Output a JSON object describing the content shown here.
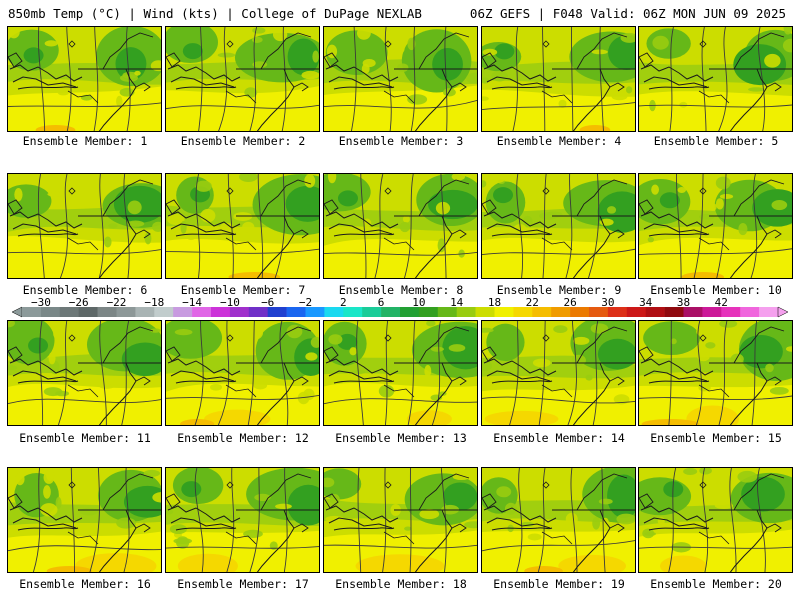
{
  "header": {
    "left": "850mb Temp (°C) | Wind (kts) | College of DuPage NEXLAB",
    "right": "06Z GEFS | F048 Valid: 06Z MON JUN 09 2025"
  },
  "members": [
    "Ensemble Member: 1",
    "Ensemble Member: 2",
    "Ensemble Member: 3",
    "Ensemble Member: 4",
    "Ensemble Member: 5",
    "Ensemble Member: 6",
    "Ensemble Member: 7",
    "Ensemble Member: 8",
    "Ensemble Member: 9",
    "Ensemble Member: 10",
    "Ensemble Member: 11",
    "Ensemble Member: 12",
    "Ensemble Member: 13",
    "Ensemble Member: 14",
    "Ensemble Member: 15",
    "Ensemble Member: 16",
    "Ensemble Member: 17",
    "Ensemble Member: 18",
    "Ensemble Member: 19",
    "Ensemble Member: 20"
  ],
  "colorbar": {
    "labels": [
      "−30",
      "−26",
      "−22",
      "−18",
      "−14",
      "−10",
      "−6",
      "−2",
      "2",
      "6",
      "10",
      "14",
      "18",
      "22",
      "26",
      "30",
      "34",
      "38",
      "42"
    ],
    "colors": [
      "#8c9a9a",
      "#7a8888",
      "#6d7878",
      "#5e6868",
      "#7c8686",
      "#8d9898",
      "#a9b4b4",
      "#c1cccc",
      "#c89be0",
      "#e066e6",
      "#cc33d9",
      "#a030cc",
      "#7030c8",
      "#2040d0",
      "#1a66f0",
      "#1a99ff",
      "#1ad9f0",
      "#1ae6c8",
      "#1acc99",
      "#22b366",
      "#22a033",
      "#33a020",
      "#66b818",
      "#99cc10",
      "#ccdd00",
      "#f0f000",
      "#f5d800",
      "#f5bd00",
      "#f09c00",
      "#eb7a00",
      "#e55a10",
      "#dd3018",
      "#cc1818",
      "#b00f14",
      "#900a10",
      "#aa1066",
      "#cc1a99",
      "#e633bb",
      "#f066dd",
      "#f5a0ee"
    ]
  }
}
